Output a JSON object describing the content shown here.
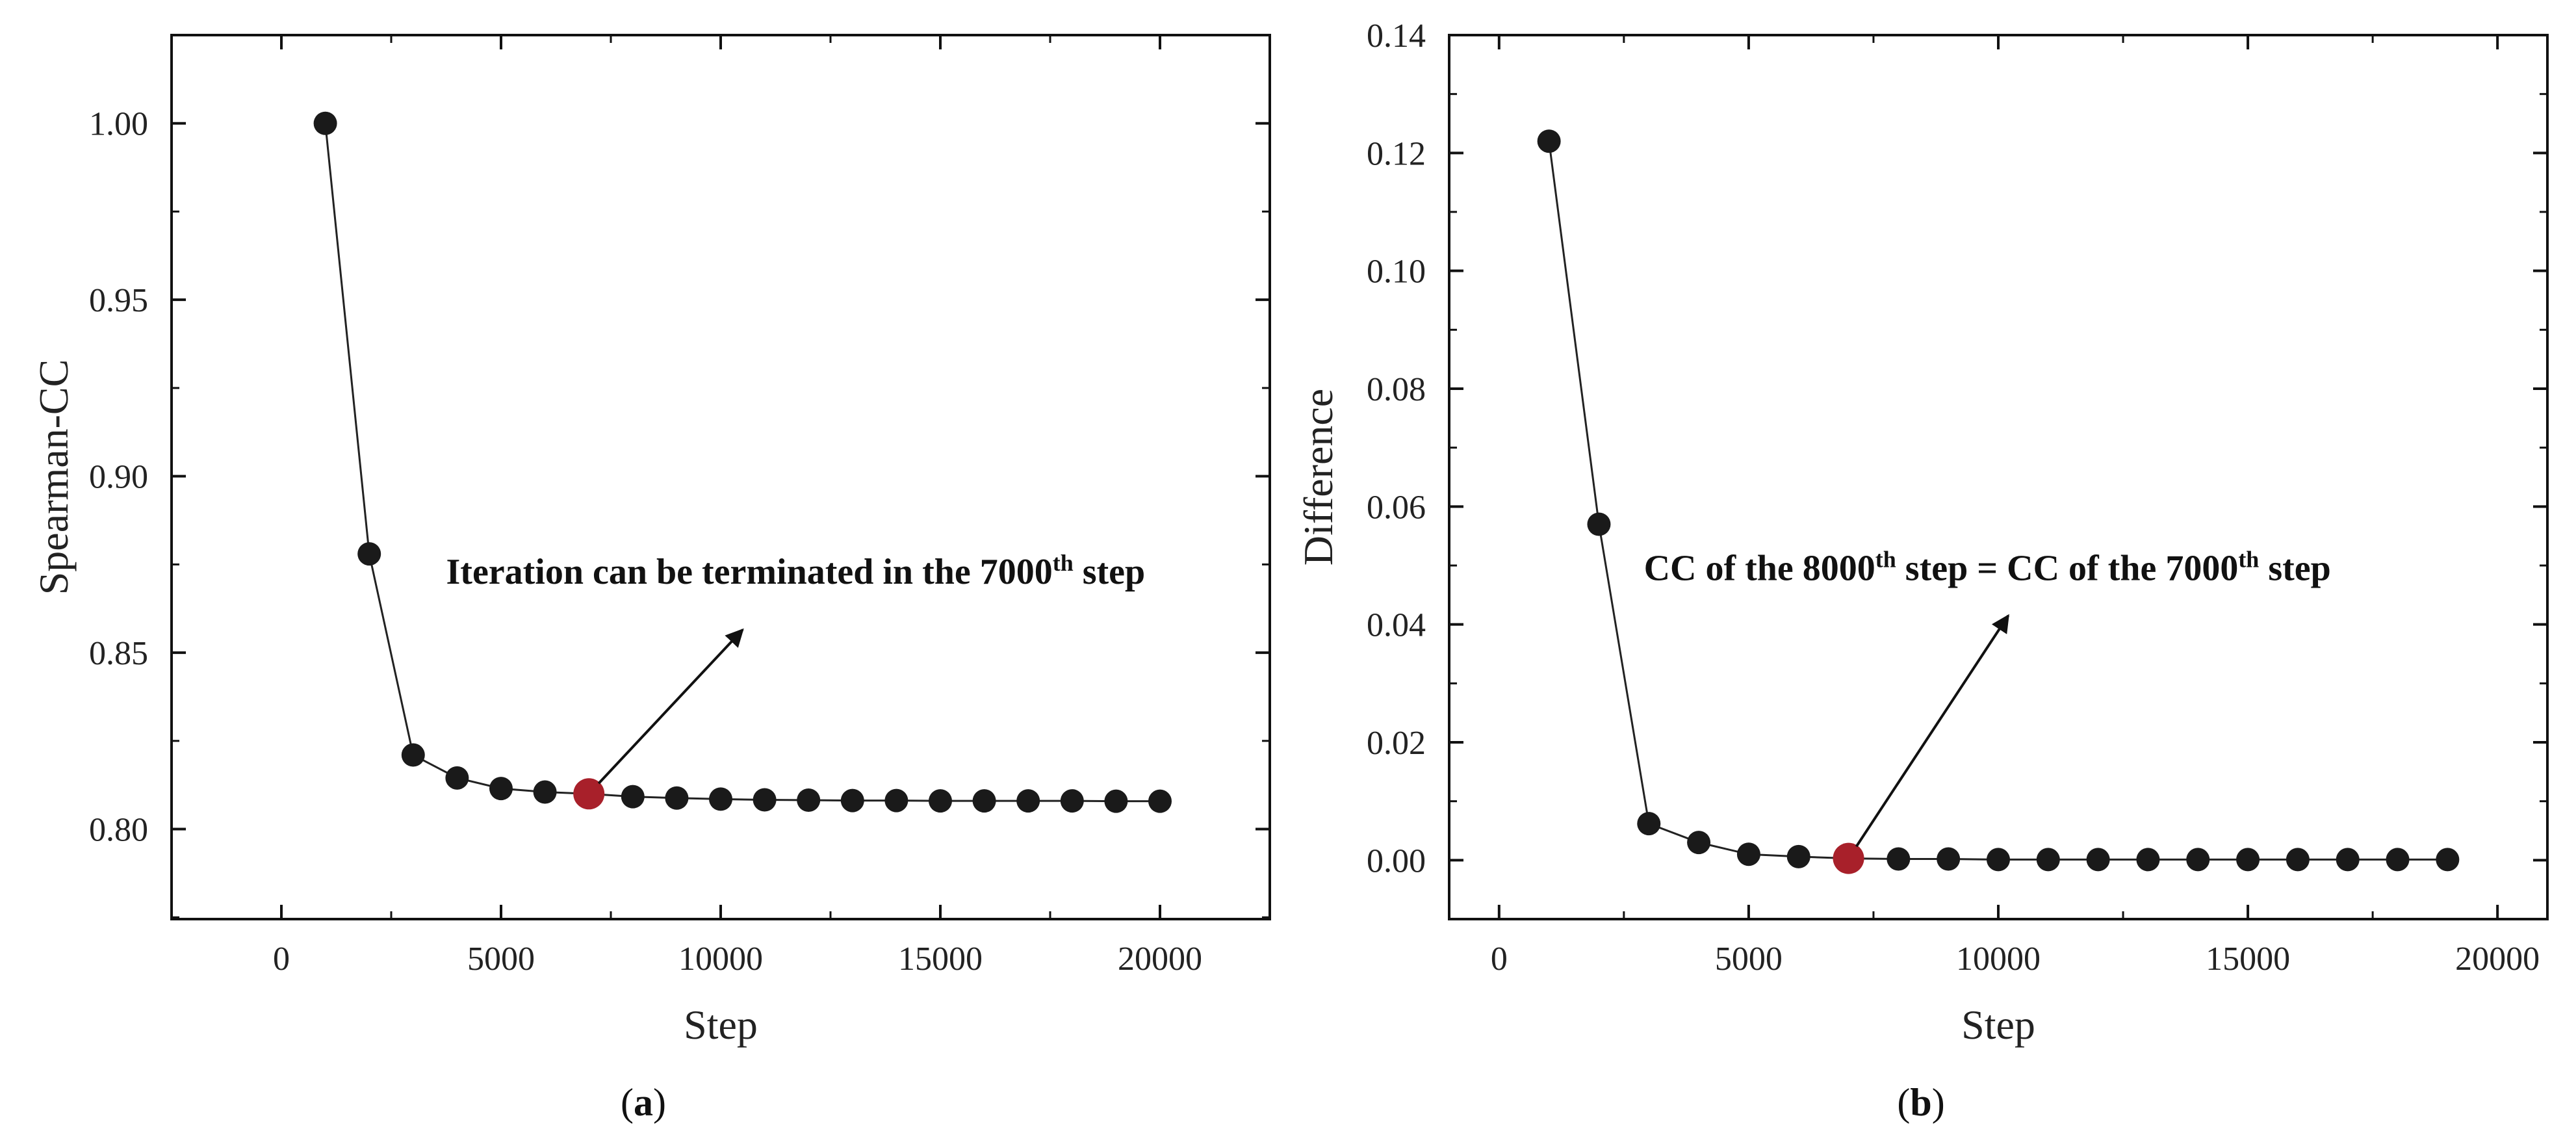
{
  "chart_data": [
    {
      "type": "line",
      "panel_label": "a",
      "xlabel": "Step",
      "ylabel": "Spearman-CC",
      "xlim": [
        -2500,
        22500
      ],
      "ylim": [
        0.7745,
        1.025
      ],
      "xticks": [
        0,
        5000,
        10000,
        15000,
        20000
      ],
      "yticks": [
        0.8,
        0.85,
        0.9,
        0.95,
        1.0
      ],
      "xtick_labels": [
        "0",
        "5000",
        "10000",
        "15000",
        "20000"
      ],
      "ytick_labels": [
        "0.80",
        "0.85",
        "0.90",
        "0.95",
        "1.00"
      ],
      "x": [
        1000,
        2000,
        3000,
        4000,
        5000,
        6000,
        7000,
        8000,
        9000,
        10000,
        11000,
        12000,
        13000,
        14000,
        15000,
        16000,
        17000,
        18000,
        19000,
        20000
      ],
      "values": [
        1.0,
        0.878,
        0.821,
        0.8145,
        0.8115,
        0.8105,
        0.81,
        0.8092,
        0.8088,
        0.8085,
        0.8083,
        0.8082,
        0.8081,
        0.8081,
        0.808,
        0.808,
        0.808,
        0.808,
        0.8079,
        0.8079
      ],
      "highlight": {
        "x": 7000,
        "y": 0.81,
        "color": "#a8202a"
      },
      "series_color": "#1a1a1a",
      "annotation": {
        "text_before": "Iteration can be terminated in the 7000",
        "sup": "th",
        "text_after": " step",
        "arrow_from": [
          7000,
          0.81
        ],
        "arrow_to": [
          10500,
          0.8565
        ],
        "text_anchor_data": [
          3750,
          0.8695
        ]
      }
    },
    {
      "type": "line",
      "panel_label": "b",
      "xlabel": "Step",
      "ylabel": "Difference",
      "xlim": [
        -1000,
        21000
      ],
      "ylim": [
        -0.01,
        0.14
      ],
      "xticks": [
        0,
        5000,
        10000,
        15000,
        20000
      ],
      "yticks": [
        0.0,
        0.02,
        0.04,
        0.06,
        0.08,
        0.1,
        0.12,
        0.14
      ],
      "xtick_labels": [
        "0",
        "5000",
        "10000",
        "15000",
        "20000"
      ],
      "ytick_labels": [
        "0.00",
        "0.02",
        "0.04",
        "0.06",
        "0.08",
        "0.10",
        "0.12",
        "0.14"
      ],
      "x": [
        1000,
        2000,
        3000,
        4000,
        5000,
        6000,
        7000,
        8000,
        9000,
        10000,
        11000,
        12000,
        13000,
        14000,
        15000,
        16000,
        17000,
        18000,
        19000
      ],
      "values": [
        0.122,
        0.057,
        0.0062,
        0.003,
        0.001,
        0.0006,
        0.0003,
        0.0002,
        0.0002,
        0.0001,
        0.0001,
        0.0001,
        0.0001,
        0.0001,
        0.0001,
        0.0001,
        0.0001,
        0.0001,
        0.0001
      ],
      "highlight": {
        "x": 7000,
        "y": 0.0003,
        "color": "#a8202a"
      },
      "series_color": "#1a1a1a",
      "annotation": {
        "text_before": "CC of the 8000",
        "sup": "th",
        "text_mid": " step = CC of the 7000",
        "sup2": "th",
        "text_after": " step",
        "arrow_from": [
          7000,
          0.0003
        ],
        "arrow_to": [
          10200,
          0.0415
        ],
        "text_anchor_data": [
          2900,
          0.0475
        ]
      }
    }
  ],
  "captions": {
    "a": "a",
    "b": "b"
  }
}
